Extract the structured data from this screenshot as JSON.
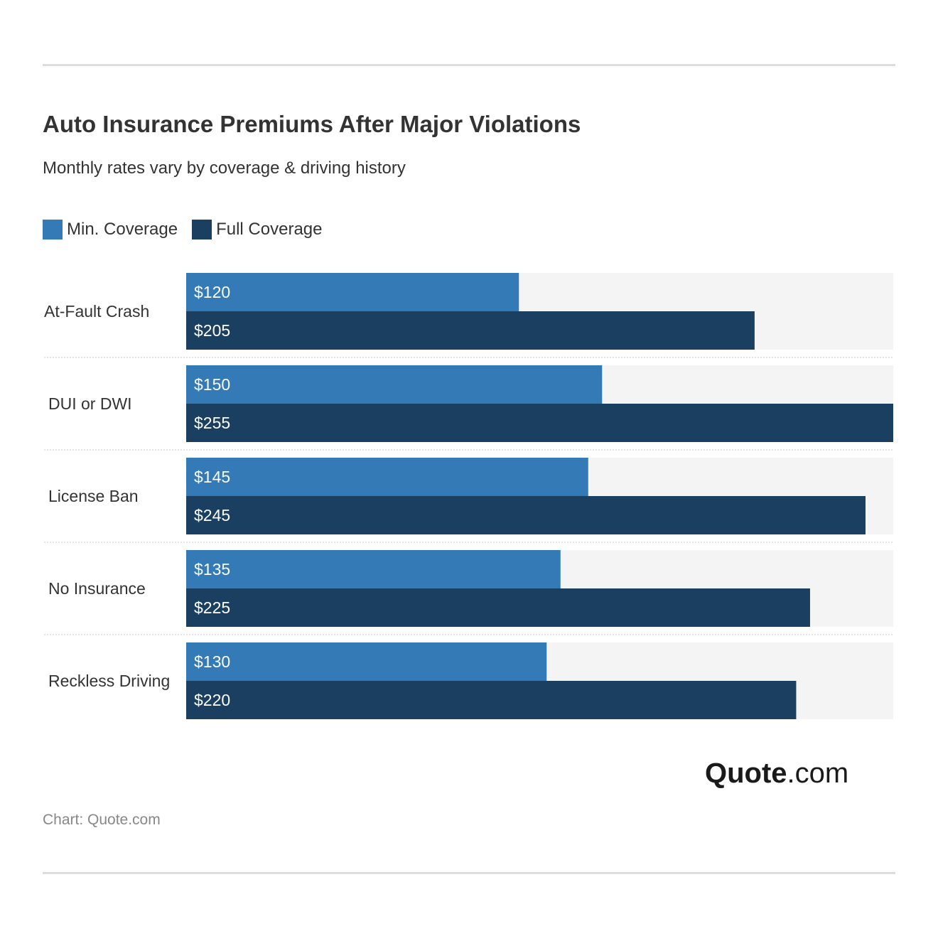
{
  "header": {
    "title": "Auto Insurance Premiums After Major Violations",
    "subtitle": "Monthly rates vary by coverage & driving history"
  },
  "legend": [
    {
      "label": "Min. Coverage",
      "color": "#337ab7"
    },
    {
      "label": "Full Coverage",
      "color": "#1b3f60"
    }
  ],
  "chart_data": {
    "type": "bar",
    "orientation": "horizontal",
    "categories": [
      "At-Fault Crash",
      "DUI or DWI",
      "License Ban",
      "No Insurance",
      "Reckless Driving"
    ],
    "series": [
      {
        "name": "Min. Coverage",
        "color": "#337ab7",
        "values": [
          120,
          150,
          145,
          135,
          130
        ],
        "labels": [
          "$120",
          "$150",
          "$145",
          "$135",
          "$130"
        ]
      },
      {
        "name": "Full Coverage",
        "color": "#1b3f60",
        "values": [
          205,
          255,
          245,
          225,
          220
        ],
        "labels": [
          "$205",
          "$255",
          "$245",
          "$225",
          "$220"
        ]
      }
    ],
    "xlim": [
      0,
      255
    ],
    "track_color": "#f4f4f4",
    "grid": false,
    "legend_position": "top-left"
  },
  "logo": {
    "brand": "Quote",
    "tld": ".com"
  },
  "footer": {
    "credit": "Chart: Quote.com"
  }
}
